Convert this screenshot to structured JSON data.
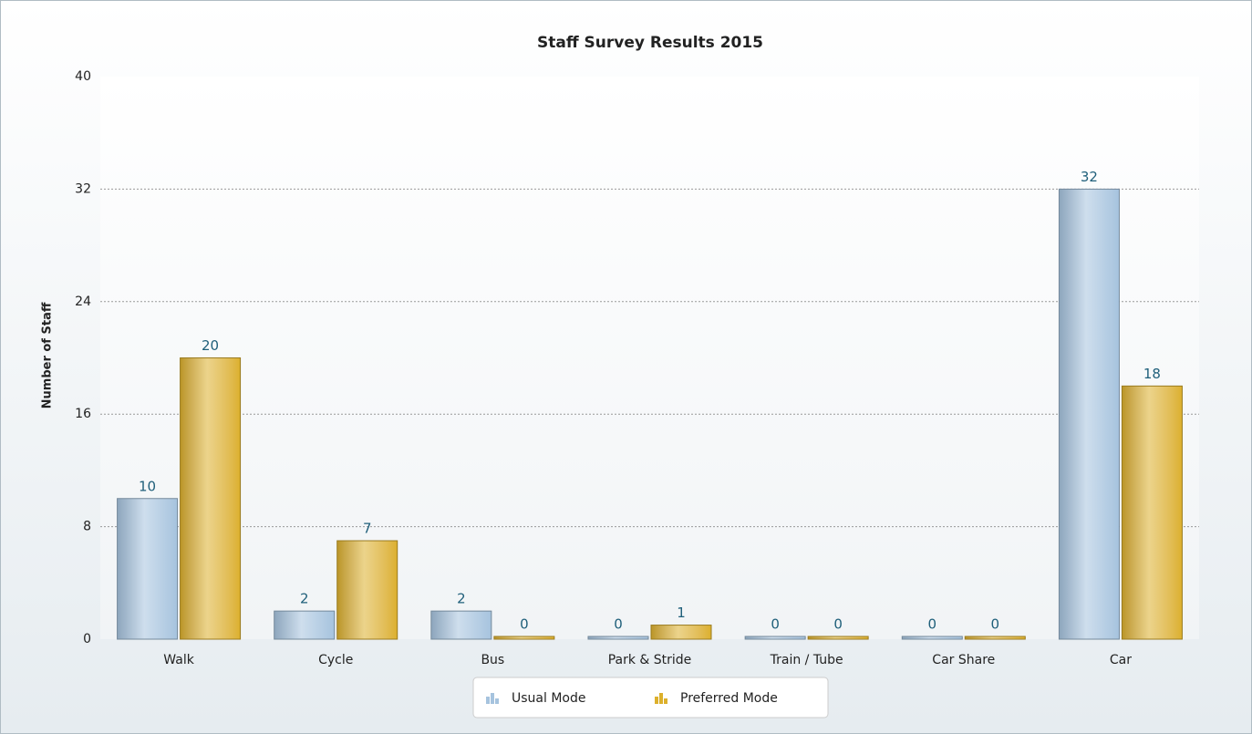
{
  "chart_data": {
    "type": "bar",
    "title": "Staff Survey Results 2015",
    "y_label": "Number of Staff",
    "categories": [
      "Walk",
      "Cycle",
      "Bus",
      "Park & Stride",
      "Train / Tube",
      "Car Share",
      "Car"
    ],
    "series": [
      {
        "name": "Usual Mode",
        "color": "#a6c3de",
        "values": [
          10,
          2,
          2,
          0,
          0,
          0,
          32
        ]
      },
      {
        "name": "Preferred Mode",
        "color": "#dcb02c",
        "values": [
          20,
          7,
          0,
          1,
          0,
          0,
          18
        ]
      }
    ],
    "ylim": [
      0,
      40
    ],
    "yticks": [
      0,
      8,
      16,
      24,
      32,
      40
    ],
    "grid": true,
    "legend": "bottom"
  }
}
